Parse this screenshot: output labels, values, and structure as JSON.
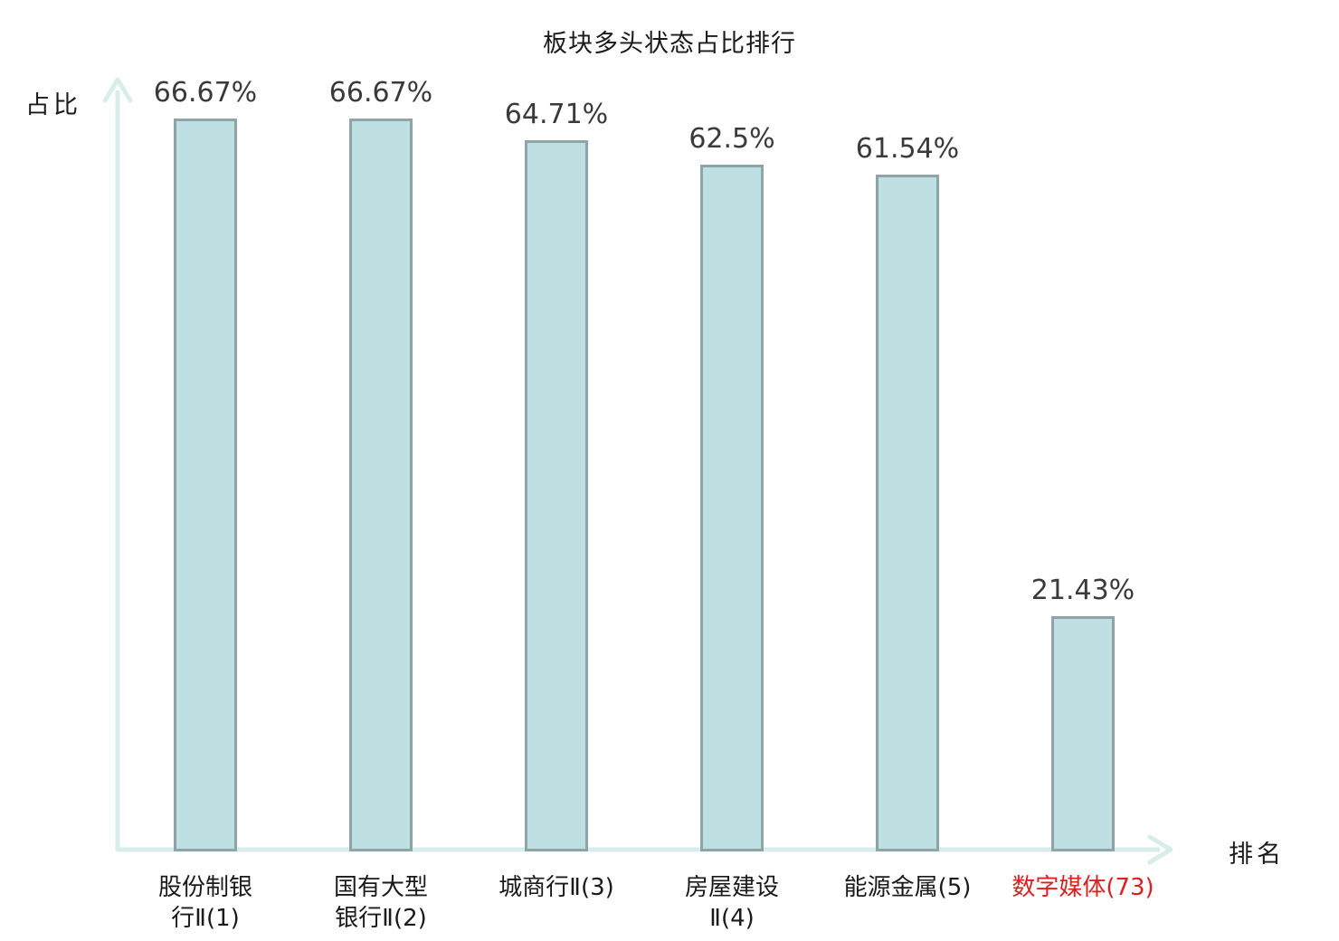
{
  "chart_data": {
    "type": "bar",
    "title": "板块多头状态占比排行",
    "xlabel": "排名",
    "ylabel": "占比",
    "categories": [
      "股份制银\n行Ⅱ(1)",
      "国有大型\n银行Ⅱ(2)",
      "城商行Ⅱ(3)",
      "房屋建设\nⅡ(4)",
      "能源金属(5)",
      "数字媒体(73)"
    ],
    "values": [
      66.67,
      66.67,
      64.71,
      62.5,
      61.54,
      21.43
    ],
    "value_labels": [
      "66.67%",
      "66.67%",
      "64.71%",
      "62.5%",
      "61.54%",
      "21.43%"
    ],
    "category_colors": [
      "#1a1a1a",
      "#1a1a1a",
      "#1a1a1a",
      "#1a1a1a",
      "#1a1a1a",
      "#d92121"
    ],
    "highlight_index": 5,
    "highlight_color": "#d92121",
    "bar_fill": "#bfe0e3",
    "bar_border": "#8da5a7",
    "axis_color": "#d8ecec",
    "value_text_color": "#3a3a3a",
    "ylim": [
      0,
      70
    ],
    "grid": false,
    "legend": null
  }
}
